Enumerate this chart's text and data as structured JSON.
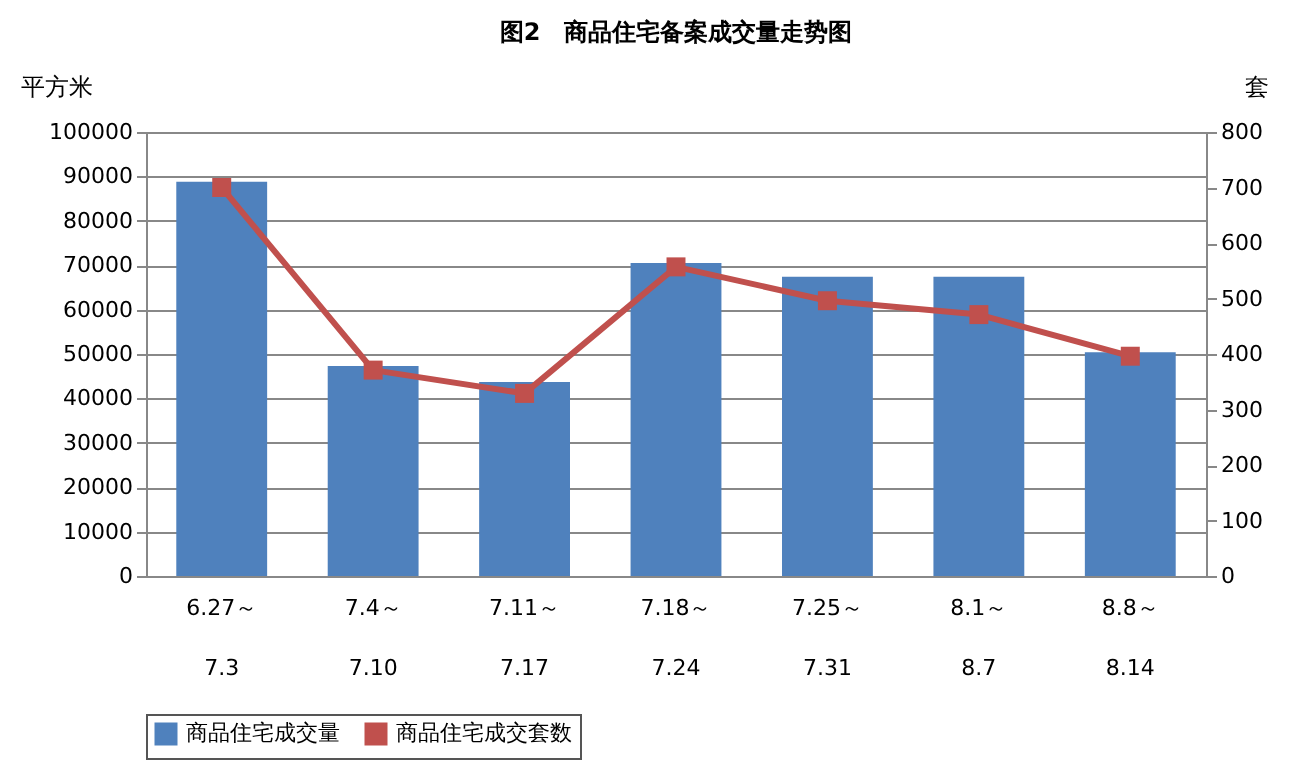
{
  "chart_data": {
    "type": "bar",
    "title": "图2　商品住宅备案成交量走势图",
    "ylabel": "平方米",
    "y2label": "套",
    "categories": [
      "6.27～\n7.3",
      "7.4～\n7.10",
      "7.11～\n7.17",
      "7.18～\n7.24",
      "7.25～\n7.31",
      "8.1～\n8.7",
      "8.8～\n8.14"
    ],
    "series": [
      {
        "name": "商品住宅成交量",
        "color": "#4f81bd",
        "values": [
          88800,
          47300,
          43700,
          70500,
          67400,
          67400,
          50400
        ]
      },
      {
        "name": "商品住宅成交套数",
        "type": "line",
        "axis": "y2",
        "color": "#c0504d",
        "marker": "square",
        "values": [
          700,
          371,
          329,
          557,
          496,
          471,
          396
        ]
      }
    ],
    "ylim": [
      0,
      100000
    ],
    "yticks": [
      0,
      10000,
      20000,
      30000,
      40000,
      50000,
      60000,
      70000,
      80000,
      90000,
      100000
    ],
    "y2lim": [
      0,
      800
    ],
    "y2ticks": [
      0,
      100,
      200,
      300,
      400,
      500,
      600,
      700,
      800
    ],
    "grid": "y",
    "legend": "bottom"
  }
}
